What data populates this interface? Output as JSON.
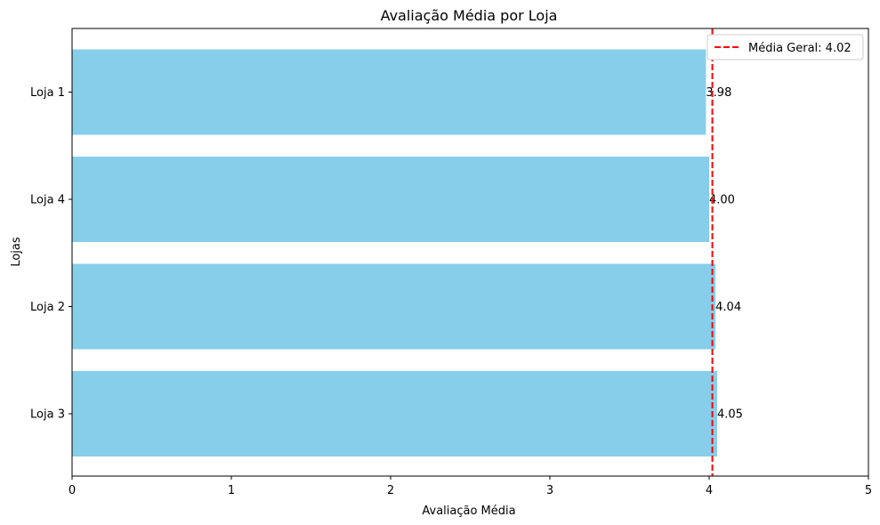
{
  "chart_data": {
    "type": "bar",
    "orientation": "horizontal",
    "title": "Avaliação Média por Loja",
    "xlabel": "Avaliação Média",
    "ylabel": "Lojas",
    "categories": [
      "Loja 1",
      "Loja 4",
      "Loja 2",
      "Loja 3"
    ],
    "values": [
      3.98,
      4.0,
      4.04,
      4.05
    ],
    "value_labels": [
      "3.98",
      "4.00",
      "4.04",
      "4.05"
    ],
    "xlim": [
      0,
      5
    ],
    "xticks": [
      0,
      1,
      2,
      3,
      4,
      5
    ],
    "xtick_labels": [
      "0",
      "1",
      "2",
      "3",
      "4",
      "5"
    ],
    "bar_color": "#87ceeb",
    "reference_line": {
      "value": 4.02,
      "label": "Média Geral: 4.02",
      "color": "#ff0000",
      "style": "dashed"
    },
    "grid": false,
    "legend_position": "top-right"
  }
}
